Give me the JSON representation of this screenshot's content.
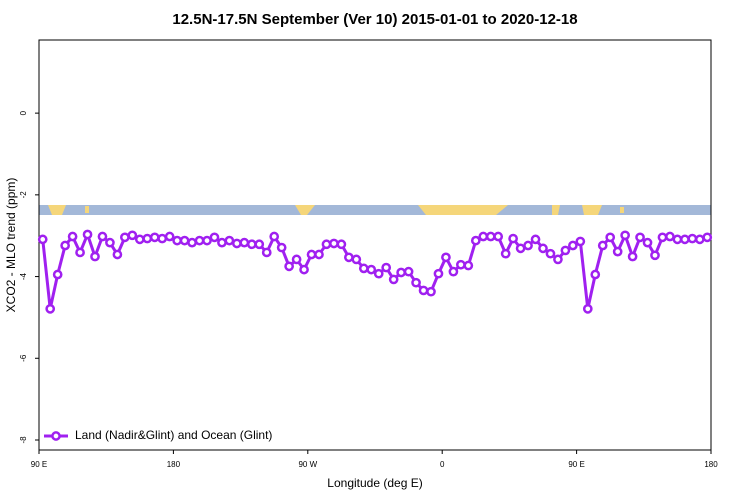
{
  "chart_data": {
    "type": "line",
    "title": "12.5N-17.5N September (Ver 10)   2015-01-01 to 2020-12-18",
    "xlabel": "Longitude (deg E)",
    "ylabel": "XCO2 - MLO trend (ppm)",
    "xlim": [
      90,
      540
    ],
    "xticks": [
      {
        "value": 90,
        "label": "90 E"
      },
      180,
      {
        "value": 270,
        "label": "90 W"
      },
      {
        "value": 360,
        "label": "0"
      },
      {
        "value": 450,
        "label": "90 E"
      },
      {
        "value": 540,
        "label": "180"
      }
    ],
    "ylim": [
      -8.245,
      1.79
    ],
    "yticks": [
      -8,
      -6,
      -4,
      -2,
      0
    ],
    "legend": "bottom-left",
    "x": [
      92.5,
      97.5,
      102.5,
      107.5,
      112.5,
      117.5,
      122.5,
      127.5,
      132.5,
      137.5,
      142.5,
      147.5,
      152.5,
      157.5,
      162.5,
      167.5,
      172.5,
      177.5,
      182.5,
      187.5,
      192.5,
      197.5,
      202.5,
      207.5,
      212.5,
      217.5,
      222.5,
      227.5,
      232.5,
      237.5,
      242.5,
      247.5,
      252.5,
      257.5,
      262.5,
      267.5,
      272.5,
      277.5,
      282.5,
      287.5,
      292.5,
      297.5,
      302.5,
      307.5,
      312.5,
      317.5,
      322.5,
      327.5,
      332.5,
      337.5,
      342.5,
      347.5,
      352.5,
      357.5,
      362.5,
      367.5,
      372.5,
      377.5,
      382.5,
      387.5,
      392.5,
      397.5,
      402.5,
      407.5,
      412.5,
      417.5,
      422.5,
      427.5,
      432.5,
      437.5,
      442.5,
      447.5,
      452.5,
      457.5,
      462.5,
      467.5,
      472.5,
      477.5,
      482.5,
      487.5,
      492.5,
      497.5,
      502.5,
      507.5,
      512.5,
      517.5,
      522.5,
      527.5,
      532.5,
      537.5
    ],
    "series": [
      {
        "name": "Land (Nadir&Glint) and Ocean (Glint)",
        "color": "#a020f0",
        "values": [
          -3.09,
          -4.79,
          -3.95,
          -3.24,
          -3.02,
          -3.41,
          -2.97,
          -3.51,
          -3.02,
          -3.17,
          -3.46,
          -3.04,
          -2.99,
          -3.09,
          -3.07,
          -3.04,
          -3.07,
          -3.02,
          -3.12,
          -3.12,
          -3.17,
          -3.12,
          -3.12,
          -3.04,
          -3.17,
          -3.12,
          -3.19,
          -3.17,
          -3.21,
          -3.21,
          -3.41,
          -3.02,
          -3.29,
          -3.75,
          -3.58,
          -3.83,
          -3.46,
          -3.46,
          -3.21,
          -3.19,
          -3.21,
          -3.53,
          -3.58,
          -3.8,
          -3.83,
          -3.93,
          -3.78,
          -4.07,
          -3.9,
          -3.88,
          -4.15,
          -4.34,
          -4.37,
          -3.93,
          -3.53,
          -3.88,
          -3.71,
          -3.73,
          -3.12,
          -3.02,
          -3.02,
          -3.02,
          -3.44,
          -3.07,
          -3.31,
          -3.24,
          -3.09,
          -3.31,
          -3.44,
          -3.58,
          -3.36,
          -3.24,
          -3.14,
          -4.79,
          -3.95,
          -3.24,
          -3.04,
          -3.39,
          -2.99,
          -3.51,
          -3.04,
          -3.17,
          -3.48,
          -3.04,
          -3.02,
          -3.09,
          -3.09,
          -3.07,
          -3.09,
          -3.04
        ]
      }
    ]
  }
}
